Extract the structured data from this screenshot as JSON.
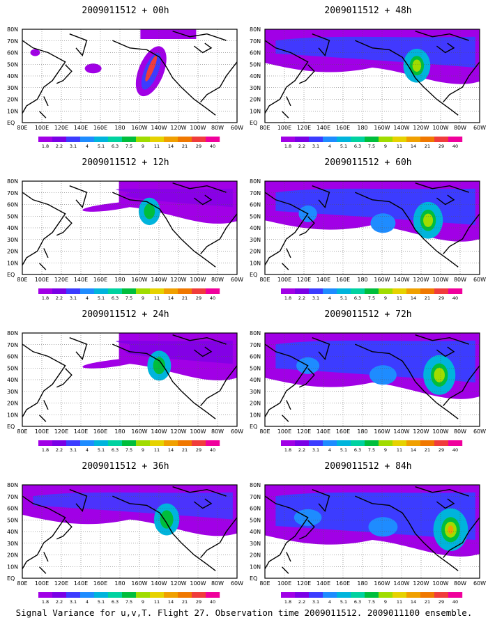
{
  "panels": [
    {
      "title": "2009011512 + 00h",
      "intensity": 0.0
    },
    {
      "title": "2009011512 + 48h",
      "intensity": 0.45
    },
    {
      "title": "2009011512 + 12h",
      "intensity": 0.12
    },
    {
      "title": "2009011512 + 60h",
      "intensity": 0.6
    },
    {
      "title": "2009011512 + 24h",
      "intensity": 0.25
    },
    {
      "title": "2009011512 + 72h",
      "intensity": 0.75
    },
    {
      "title": "2009011512 + 36h",
      "intensity": 0.35
    },
    {
      "title": "2009011512 + 84h",
      "intensity": 0.9
    }
  ],
  "lat_labels": [
    "80N",
    "70N",
    "60N",
    "50N",
    "40N",
    "30N",
    "20N",
    "10N",
    "EQ"
  ],
  "lon_labels": [
    "80E",
    "100E",
    "120E",
    "140E",
    "160E",
    "180",
    "160W",
    "140W",
    "120W",
    "100W",
    "80W",
    "60W"
  ],
  "colorbar": {
    "colors": [
      "#a100e6",
      "#7a00e6",
      "#3c3cff",
      "#1e8cff",
      "#00b4dc",
      "#00d2a0",
      "#00be3c",
      "#a0dc00",
      "#e6d200",
      "#f0a000",
      "#f07800",
      "#f03c3c",
      "#f0009c"
    ],
    "labels": [
      "1.8",
      "2.2",
      "3.1",
      "4",
      "5.1",
      "6.3",
      "7.5",
      "9",
      "11",
      "14",
      "21",
      "29",
      "40"
    ]
  },
  "footer": "Signal Variance for u,v,T. Flight 27. Observation time 2009011512. 2009011100 ensemble."
}
